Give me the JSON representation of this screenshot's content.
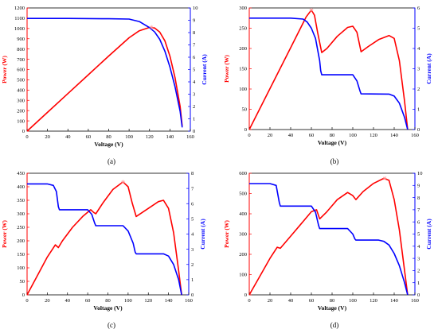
{
  "colors": {
    "power": "#ff0000",
    "current": "#0000ff",
    "axis": "#000000"
  },
  "chart_data": [
    {
      "panel": "(a)",
      "type": "line",
      "xlabel": "Voltage (V)",
      "ylabel_left": "Power (W)",
      "ylabel_right": "Current (A)",
      "xlim": [
        0,
        160
      ],
      "xticks": [
        0,
        20,
        40,
        60,
        80,
        100,
        120,
        140,
        160
      ],
      "ylim_left": [
        0,
        1200
      ],
      "yticks_left": [
        0,
        100,
        200,
        300,
        400,
        500,
        600,
        700,
        800,
        900,
        1000,
        1100,
        1200
      ],
      "ylim_right": [
        0,
        10
      ],
      "yticks_right": [
        0,
        1,
        2,
        3,
        4,
        5,
        6,
        7,
        8,
        9,
        10
      ],
      "series": [
        {
          "axis": "left",
          "color": "#ff0000",
          "x": [
            0,
            20,
            40,
            60,
            80,
            100,
            110,
            120,
            125,
            130,
            135,
            140,
            145,
            150,
            152
          ],
          "y": [
            0,
            183,
            366,
            549,
            732,
            910,
            978,
            1010,
            1005,
            965,
            880,
            730,
            520,
            240,
            50
          ]
        },
        {
          "axis": "right",
          "color": "#0000ff",
          "x": [
            0,
            40,
            80,
            100,
            110,
            120,
            125,
            130,
            135,
            140,
            145,
            150,
            152
          ],
          "y": [
            9.15,
            9.15,
            9.12,
            9.1,
            8.9,
            8.4,
            8.05,
            7.45,
            6.5,
            5.2,
            3.6,
            1.6,
            0.3
          ]
        }
      ],
      "mpp": {
        "x": 122,
        "y": 1012
      }
    },
    {
      "panel": "(b)",
      "type": "line",
      "xlabel": "Voltage (V)",
      "ylabel_left": "Power (W)",
      "ylabel_right": "Current (A)",
      "xlim": [
        0,
        160
      ],
      "xticks": [
        0,
        20,
        40,
        60,
        80,
        100,
        120,
        140,
        160
      ],
      "ylim_left": [
        0,
        300
      ],
      "yticks_left": [
        0,
        50,
        100,
        150,
        200,
        250,
        300
      ],
      "ylim_right": [
        0,
        6
      ],
      "yticks_right": [
        0,
        1,
        2,
        3,
        4,
        5,
        6
      ],
      "series": [
        {
          "axis": "left",
          "color": "#ff0000",
          "x": [
            0,
            20,
            40,
            55,
            60,
            63,
            66,
            70,
            75,
            85,
            95,
            100,
            104,
            108,
            115,
            125,
            135,
            140,
            145,
            150,
            153
          ],
          "y": [
            0,
            101,
            202,
            278,
            295,
            282,
            240,
            190,
            200,
            230,
            252,
            255,
            240,
            192,
            205,
            222,
            232,
            225,
            170,
            70,
            0
          ]
        },
        {
          "axis": "right",
          "color": "#0000ff",
          "x": [
            0,
            40,
            52,
            56,
            60,
            64,
            68,
            69,
            70,
            100,
            104,
            107,
            108,
            135,
            140,
            145,
            150,
            153
          ],
          "y": [
            5.5,
            5.5,
            5.45,
            5.3,
            5.0,
            4.5,
            3.4,
            2.9,
            2.7,
            2.7,
            2.4,
            1.9,
            1.76,
            1.75,
            1.65,
            1.3,
            0.6,
            0
          ]
        }
      ],
      "mpp": {
        "x": 60,
        "y": 295
      }
    },
    {
      "panel": "(c)",
      "type": "line",
      "xlabel": "Voltage (V)",
      "ylabel_left": "Power (W)",
      "ylabel_right": "Current (A)",
      "xlim": [
        0,
        160
      ],
      "xticks": [
        0,
        20,
        40,
        60,
        80,
        100,
        120,
        140,
        160
      ],
      "ylim_left": [
        0,
        450
      ],
      "yticks_left": [
        0,
        50,
        100,
        150,
        200,
        250,
        300,
        350,
        400,
        450
      ],
      "ylim_right": [
        0,
        8
      ],
      "yticks_right": [
        0,
        1,
        2,
        3,
        4,
        5,
        6,
        7,
        8
      ],
      "series": [
        {
          "axis": "left",
          "color": "#ff0000",
          "x": [
            0,
            10,
            20,
            28,
            31,
            35,
            45,
            55,
            63,
            66,
            68,
            75,
            85,
            95,
            100,
            104,
            108,
            120,
            130,
            135,
            140,
            145,
            150,
            153
          ],
          "y": [
            0,
            70,
            140,
            185,
            175,
            200,
            250,
            290,
            315,
            305,
            300,
            340,
            390,
            418,
            400,
            340,
            290,
            320,
            345,
            350,
            320,
            230,
            90,
            0
          ]
        },
        {
          "axis": "right",
          "color": "#0000ff",
          "x": [
            0,
            20,
            26,
            29,
            31,
            32,
            60,
            64,
            67,
            68,
            95,
            100,
            105,
            107,
            108,
            135,
            140,
            145,
            150,
            153
          ],
          "y": [
            7.3,
            7.3,
            7.2,
            6.8,
            5.8,
            5.6,
            5.6,
            5.3,
            4.7,
            4.55,
            4.55,
            4.2,
            3.4,
            2.8,
            2.7,
            2.7,
            2.55,
            2.0,
            1.0,
            0
          ]
        }
      ],
      "mpp": {
        "x": 95,
        "y": 418
      }
    },
    {
      "panel": "(d)",
      "type": "line",
      "xlabel": "Voltage (V)",
      "ylabel_left": "Power (W)",
      "ylabel_right": "Current (A)",
      "xlim": [
        0,
        160
      ],
      "xticks": [
        0,
        20,
        40,
        60,
        80,
        100,
        120,
        140,
        160
      ],
      "ylim_left": [
        0,
        600
      ],
      "yticks_left": [
        0,
        100,
        200,
        300,
        400,
        500,
        600
      ],
      "ylim_right": [
        0,
        10
      ],
      "yticks_right": [
        0,
        1,
        2,
        3,
        4,
        5,
        6,
        7,
        8,
        9,
        10
      ],
      "series": [
        {
          "axis": "left",
          "color": "#ff0000",
          "x": [
            0,
            10,
            20,
            27,
            30,
            40,
            50,
            60,
            65,
            68,
            75,
            85,
            95,
            100,
            103,
            110,
            120,
            130,
            135,
            140,
            145,
            150,
            153
          ],
          "y": [
            0,
            90,
            180,
            235,
            230,
            290,
            350,
            410,
            420,
            375,
            410,
            470,
            505,
            490,
            470,
            510,
            550,
            575,
            565,
            470,
            320,
            120,
            0
          ]
        },
        {
          "axis": "right",
          "color": "#0000ff",
          "x": [
            0,
            20,
            26,
            29,
            30,
            60,
            64,
            67,
            68,
            95,
            100,
            102,
            103,
            125,
            130,
            135,
            140,
            145,
            150,
            153
          ],
          "y": [
            9.15,
            9.15,
            9.0,
            7.6,
            7.3,
            7.3,
            6.8,
            5.7,
            5.45,
            5.45,
            5.0,
            4.6,
            4.5,
            4.5,
            4.4,
            4.1,
            3.4,
            2.4,
            1.0,
            0
          ]
        }
      ],
      "mpp": {
        "x": 131,
        "y": 575
      }
    }
  ]
}
